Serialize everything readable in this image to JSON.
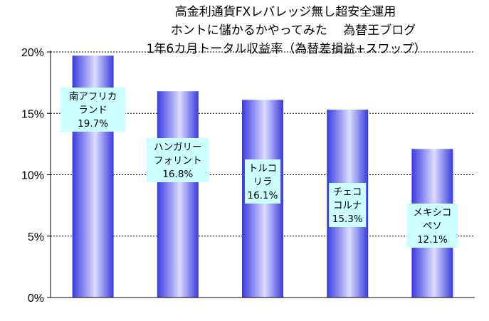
{
  "chart_data": {
    "type": "bar",
    "title_lines": [
      "高金利通貨FXレバレッジ無し超安全運用",
      "ホントに儲かるかやってみた　 為替王ブログ",
      "1年6カ月トータル収益率（為替差損益+スワップ）"
    ],
    "categories": [
      [
        "南アフリカ",
        "ランド"
      ],
      [
        "ハンガリー",
        "フォリント"
      ],
      [
        "トルコ",
        "リラ"
      ],
      [
        "チェコ",
        "コルナ"
      ],
      [
        "メキシコ",
        "ペソ"
      ]
    ],
    "values": [
      19.7,
      16.8,
      16.1,
      15.3,
      12.1
    ],
    "value_labels": [
      "19.7%",
      "16.8%",
      "16.1%",
      "15.3%",
      "12.1%"
    ],
    "ylim": [
      0,
      20
    ],
    "yticks": [
      0,
      5,
      10,
      15,
      20
    ],
    "ytick_labels": [
      "0%",
      "5%",
      "10%",
      "15%",
      "20%"
    ],
    "grid": true,
    "legend": false,
    "colors": {
      "bar_dark": "#3a3ae0",
      "bar_light": "#dcdcff",
      "label_bg": "#ccffff",
      "grid": "#000000"
    }
  }
}
